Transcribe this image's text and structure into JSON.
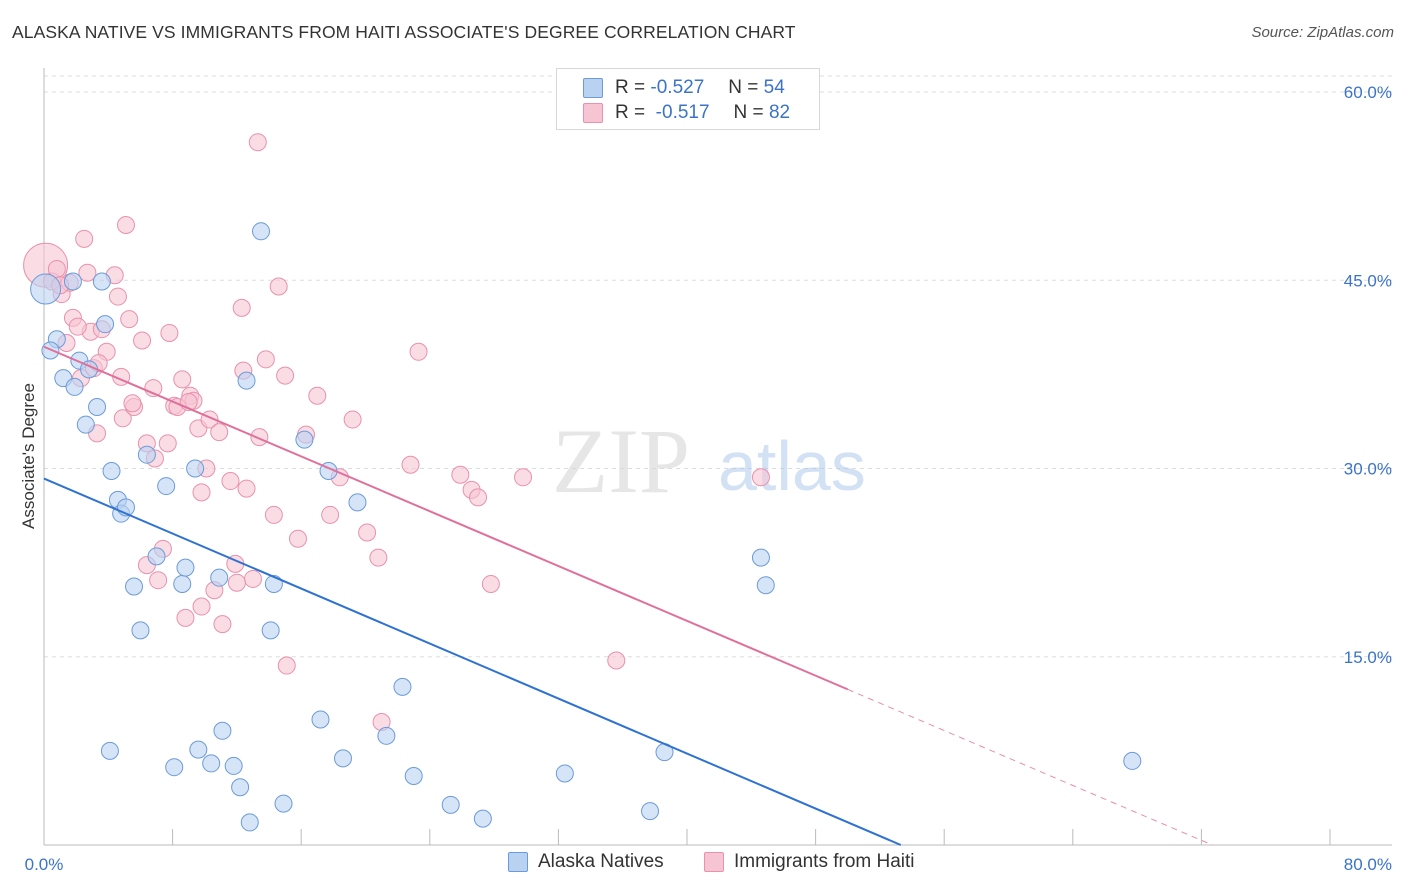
{
  "header": {
    "title": "ALASKA NATIVE VS IMMIGRANTS FROM HAITI ASSOCIATE'S DEGREE CORRELATION CHART",
    "source": "Source: ZipAtlas.com"
  },
  "watermark": {
    "zip": "ZIP",
    "atlas": "atlas"
  },
  "legend_top": [
    {
      "r_label": "R =",
      "r_value": "-0.527",
      "n_label": "N =",
      "n_value": "54"
    },
    {
      "r_label": "R =",
      "r_value": "-0.517",
      "n_label": "N =",
      "n_value": "82"
    }
  ],
  "legend_bottom": [
    {
      "label": "Alaska Natives"
    },
    {
      "label": "Immigrants from Haiti"
    }
  ],
  "colors": {
    "blue_fill": "#b9d2f2",
    "blue_stroke": "#6c9bd8",
    "blue_line": "#2f72d1",
    "pink_fill": "#f7c4d3",
    "pink_stroke": "#e991ad",
    "pink_line": "#e0709a",
    "grid": "#dddddd",
    "tick_text": "#3b73c9"
  },
  "chart_data": {
    "type": "scatter",
    "title": "ALASKA NATIVE VS IMMIGRANTS FROM HAITI ASSOCIATE'S DEGREE CORRELATION CHART",
    "xlabel": "",
    "ylabel": "Associate's Degree",
    "xlim": [
      0,
      80
    ],
    "ylim": [
      0,
      60
    ],
    "x_tick_labels": [
      "0.0%",
      "80.0%"
    ],
    "y_ticks": [
      15,
      30,
      45,
      60
    ],
    "y_tick_labels": [
      "15.0%",
      "30.0%",
      "45.0%",
      "60.0%"
    ],
    "grid": true,
    "legend_position": "top-center and bottom",
    "series": [
      {
        "name": "Alaska Natives",
        "color": "#6c9bd8",
        "points": [
          [
            0.1,
            44.3
          ],
          [
            0.8,
            40.3
          ],
          [
            1.2,
            37.2
          ],
          [
            1.8,
            44.9
          ],
          [
            1.9,
            36.5
          ],
          [
            2.2,
            38.6
          ],
          [
            2.6,
            33.5
          ],
          [
            2.8,
            37.9
          ],
          [
            3.3,
            34.9
          ],
          [
            3.6,
            44.9
          ],
          [
            3.8,
            41.5
          ],
          [
            4.2,
            29.8
          ],
          [
            4.6,
            27.5
          ],
          [
            4.8,
            26.4
          ],
          [
            5.1,
            26.9
          ],
          [
            5.6,
            20.6
          ],
          [
            6.0,
            17.1
          ],
          [
            6.4,
            31.1
          ],
          [
            7.0,
            23.0
          ],
          [
            7.6,
            28.6
          ],
          [
            8.1,
            6.2
          ],
          [
            8.6,
            20.8
          ],
          [
            8.8,
            22.1
          ],
          [
            9.4,
            30.0
          ],
          [
            9.6,
            7.6
          ],
          [
            10.4,
            6.5
          ],
          [
            10.9,
            21.3
          ],
          [
            11.1,
            9.1
          ],
          [
            11.8,
            6.3
          ],
          [
            12.2,
            4.6
          ],
          [
            12.6,
            37.0
          ],
          [
            12.8,
            1.8
          ],
          [
            13.5,
            48.9
          ],
          [
            14.1,
            17.1
          ],
          [
            14.3,
            20.8
          ],
          [
            14.9,
            3.3
          ],
          [
            16.2,
            32.3
          ],
          [
            17.2,
            10.0
          ],
          [
            17.7,
            29.8
          ],
          [
            18.6,
            6.9
          ],
          [
            19.5,
            27.3
          ],
          [
            21.3,
            8.7
          ],
          [
            22.3,
            12.6
          ],
          [
            23.0,
            5.5
          ],
          [
            25.3,
            3.2
          ],
          [
            27.3,
            2.1
          ],
          [
            32.4,
            5.7
          ],
          [
            37.7,
            2.7
          ],
          [
            38.6,
            7.4
          ],
          [
            44.6,
            22.9
          ],
          [
            44.9,
            20.7
          ],
          [
            67.7,
            6.7
          ],
          [
            0.4,
            39.4
          ],
          [
            4.1,
            7.5
          ]
        ],
        "trendline": {
          "x": [
            0,
            53.3
          ],
          "y": [
            29.2,
            0
          ]
        }
      },
      {
        "name": "Immigrants from Haiti",
        "color": "#e991ad",
        "points": [
          [
            0.1,
            46.2
          ],
          [
            0.5,
            44.9
          ],
          [
            0.8,
            45.9
          ],
          [
            1.1,
            43.9
          ],
          [
            1.4,
            40.0
          ],
          [
            1.6,
            44.8
          ],
          [
            1.8,
            42.0
          ],
          [
            2.3,
            37.2
          ],
          [
            2.5,
            48.3
          ],
          [
            2.7,
            45.6
          ],
          [
            2.9,
            40.9
          ],
          [
            3.1,
            38.0
          ],
          [
            3.3,
            32.8
          ],
          [
            3.6,
            41.1
          ],
          [
            3.9,
            39.3
          ],
          [
            4.4,
            45.4
          ],
          [
            4.6,
            43.7
          ],
          [
            4.8,
            37.3
          ],
          [
            4.9,
            34.0
          ],
          [
            5.1,
            49.4
          ],
          [
            5.3,
            41.9
          ],
          [
            5.6,
            34.9
          ],
          [
            6.1,
            40.2
          ],
          [
            6.4,
            32.0
          ],
          [
            6.8,
            36.4
          ],
          [
            6.9,
            30.8
          ],
          [
            7.1,
            21.1
          ],
          [
            7.4,
            23.6
          ],
          [
            7.8,
            40.8
          ],
          [
            8.1,
            35.0
          ],
          [
            8.3,
            34.9
          ],
          [
            8.6,
            37.1
          ],
          [
            8.8,
            18.1
          ],
          [
            9.1,
            35.8
          ],
          [
            9.3,
            35.4
          ],
          [
            9.6,
            33.2
          ],
          [
            9.8,
            19.0
          ],
          [
            10.1,
            30.0
          ],
          [
            10.3,
            33.9
          ],
          [
            10.6,
            20.3
          ],
          [
            10.9,
            32.9
          ],
          [
            11.1,
            17.6
          ],
          [
            11.6,
            29.0
          ],
          [
            11.9,
            22.4
          ],
          [
            12.3,
            42.8
          ],
          [
            12.4,
            37.8
          ],
          [
            12.6,
            28.4
          ],
          [
            13.0,
            21.2
          ],
          [
            13.4,
            32.5
          ],
          [
            13.8,
            38.7
          ],
          [
            14.3,
            26.3
          ],
          [
            14.6,
            44.5
          ],
          [
            15.0,
            37.4
          ],
          [
            15.1,
            14.3
          ],
          [
            15.8,
            24.4
          ],
          [
            16.3,
            32.7
          ],
          [
            17.0,
            35.8
          ],
          [
            17.8,
            26.3
          ],
          [
            18.4,
            29.3
          ],
          [
            19.2,
            33.9
          ],
          [
            20.1,
            24.9
          ],
          [
            20.8,
            22.9
          ],
          [
            21.0,
            9.8
          ],
          [
            22.8,
            30.3
          ],
          [
            23.3,
            39.3
          ],
          [
            25.9,
            29.5
          ],
          [
            26.6,
            28.3
          ],
          [
            27.0,
            27.7
          ],
          [
            27.8,
            20.8
          ],
          [
            29.8,
            29.3
          ],
          [
            35.6,
            14.7
          ],
          [
            44.6,
            29.3
          ],
          [
            13.3,
            56.0
          ],
          [
            5.5,
            35.2
          ],
          [
            7.7,
            32.0
          ],
          [
            9.0,
            35.3
          ],
          [
            9.8,
            28.1
          ],
          [
            1.0,
            44.6
          ],
          [
            2.1,
            41.3
          ],
          [
            3.4,
            38.4
          ],
          [
            6.4,
            22.3
          ],
          [
            12.0,
            20.9
          ]
        ],
        "trendline": {
          "x": [
            0,
            50
          ],
          "y": [
            39.7,
            12.4
          ]
        },
        "trendline_dashed": {
          "x": [
            50,
            80
          ],
          "y": [
            12.4,
            -4.0
          ]
        }
      }
    ]
  }
}
